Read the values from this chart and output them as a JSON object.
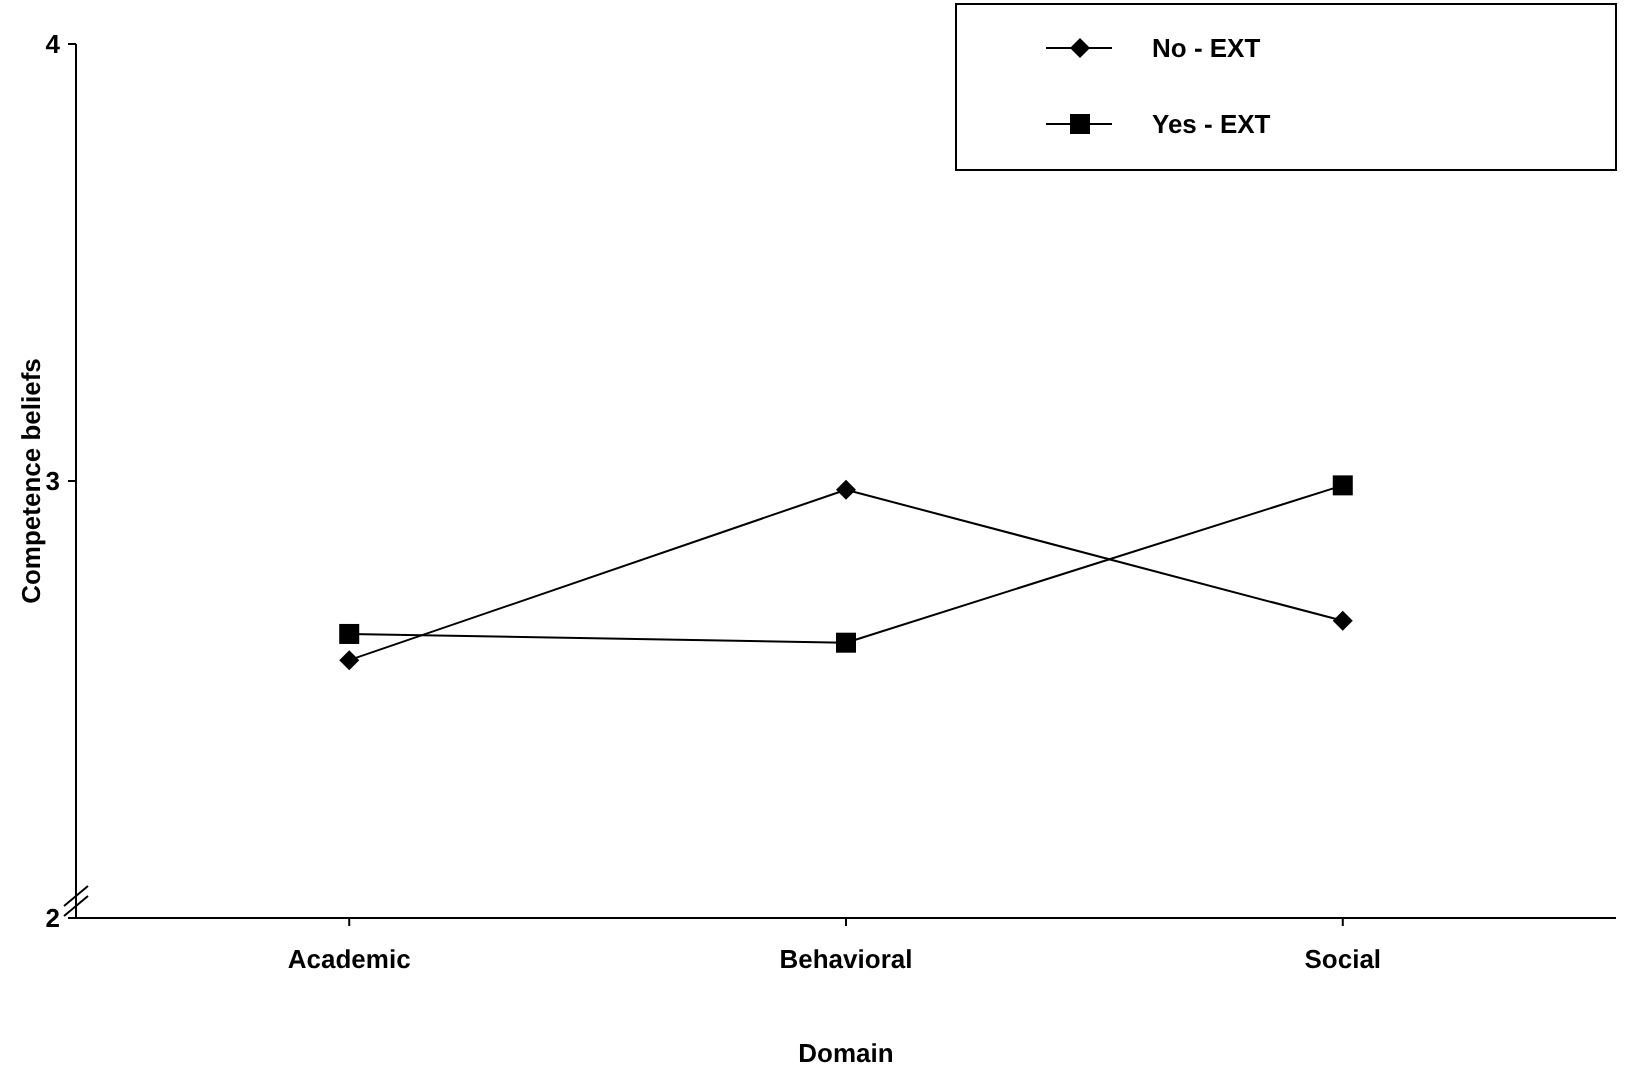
{
  "chart_data": {
    "type": "line",
    "xlabel": "Domain",
    "ylabel": "Competence beliefs",
    "categories": [
      "Academic",
      "Behavioral",
      "Social"
    ],
    "series": [
      {
        "name": "No - EXT",
        "color": "#000000",
        "marker": "diamond",
        "values": [
          2.59,
          2.98,
          2.68
        ]
      },
      {
        "name": "Yes - EXT",
        "color": "#000000",
        "marker": "square",
        "values": [
          2.65,
          2.63,
          2.99
        ]
      }
    ],
    "ylim": [
      2,
      4
    ],
    "yticks": [
      2,
      3,
      4
    ],
    "legend": "top right",
    "grid": false,
    "line_style": "solid"
  }
}
